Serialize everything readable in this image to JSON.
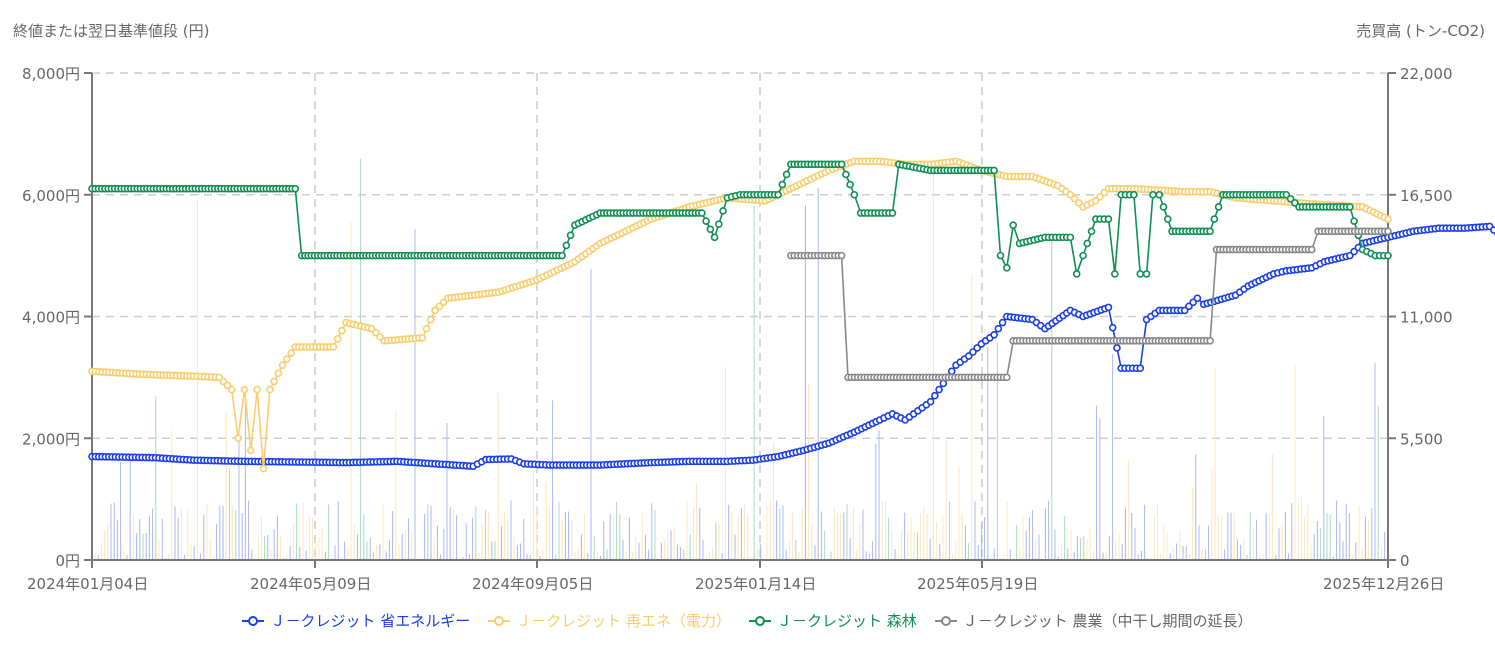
{
  "chart_data": {
    "type": "line",
    "title": "",
    "ylabel": "終値または翌日基準値段 (円)",
    "ylabel_right": "売買高 (トン-CO2)",
    "xlabel": "",
    "x_range": [
      "2024-01-04",
      "2025-12-26"
    ],
    "ylim": [
      0,
      8000
    ],
    "ylim_right": [
      0,
      22000
    ],
    "y_ticks": [
      "0円",
      "2,000円",
      "4,000円",
      "6,000円",
      "8,000円"
    ],
    "y_ticks_right": [
      "0",
      "5,500",
      "11,000",
      "16,500",
      "22,000"
    ],
    "x_ticks": [
      "2024年01月04日",
      "2024年05月09日",
      "2024年09月05日",
      "2025年01月14日",
      "2025年05月19日",
      "2025年12月26日"
    ],
    "grid": true,
    "legend_position": "bottom",
    "series": [
      {
        "name": "Ｊ－クレジット 省エネルギー",
        "color": "#1a3ee8",
        "points": [
          [
            0,
            1700
          ],
          [
            0.05,
            1680
          ],
          [
            0.08,
            1640
          ],
          [
            0.12,
            1620
          ],
          [
            0.16,
            1610
          ],
          [
            0.2,
            1600
          ],
          [
            0.24,
            1620
          ],
          [
            0.27,
            1580
          ],
          [
            0.3,
            1540
          ],
          [
            0.31,
            1650
          ],
          [
            0.33,
            1660
          ],
          [
            0.34,
            1580
          ],
          [
            0.36,
            1560
          ],
          [
            0.4,
            1560
          ],
          [
            0.44,
            1600
          ],
          [
            0.47,
            1620
          ],
          [
            0.5,
            1620
          ],
          [
            0.52,
            1640
          ],
          [
            0.54,
            1700
          ],
          [
            0.56,
            1800
          ],
          [
            0.58,
            1920
          ],
          [
            0.6,
            2100
          ],
          [
            0.62,
            2300
          ],
          [
            0.63,
            2400
          ],
          [
            0.64,
            2300
          ],
          [
            0.65,
            2450
          ],
          [
            0.66,
            2600
          ],
          [
            0.67,
            2900
          ],
          [
            0.68,
            3200
          ],
          [
            0.69,
            3350
          ],
          [
            0.7,
            3550
          ],
          [
            0.71,
            3700
          ],
          [
            0.72,
            4000
          ],
          [
            0.74,
            3950
          ],
          [
            0.75,
            3800
          ],
          [
            0.77,
            4100
          ],
          [
            0.78,
            4000
          ],
          [
            0.8,
            4150
          ],
          [
            0.81,
            3150
          ],
          [
            0.825,
            3150
          ],
          [
            0.83,
            3950
          ],
          [
            0.84,
            4100
          ],
          [
            0.86,
            4100
          ],
          [
            0.87,
            4300
          ],
          [
            0.875,
            4200
          ],
          [
            0.9,
            4350
          ],
          [
            0.91,
            4500
          ],
          [
            0.93,
            4700
          ],
          [
            0.94,
            4750
          ],
          [
            0.96,
            4800
          ],
          [
            0.97,
            4900
          ],
          [
            0.99,
            5000
          ],
          [
            1.0,
            5200
          ],
          [
            1.02,
            5300
          ],
          [
            1.04,
            5400
          ],
          [
            1.06,
            5450
          ],
          [
            1.08,
            5450
          ],
          [
            1.1,
            5480
          ],
          [
            1.11,
            5300
          ],
          [
            1.13,
            5350
          ],
          [
            1.14,
            5400
          ],
          [
            1.16,
            5350
          ],
          [
            1.17,
            5200
          ],
          [
            1.18,
            5100
          ],
          [
            1.19,
            5000
          ],
          [
            1.2,
            5200
          ],
          [
            1.22,
            5200
          ]
        ]
      },
      {
        "name": "Ｊ－クレジット 再エネ（電力）",
        "color": "#f9cd6e",
        "points": [
          [
            0,
            3100
          ],
          [
            0.04,
            3050
          ],
          [
            0.08,
            3020
          ],
          [
            0.1,
            3000
          ],
          [
            0.11,
            2800
          ],
          [
            0.115,
            2000
          ],
          [
            0.12,
            2800
          ],
          [
            0.125,
            1800
          ],
          [
            0.13,
            2800
          ],
          [
            0.135,
            1500
          ],
          [
            0.14,
            2800
          ],
          [
            0.15,
            3200
          ],
          [
            0.16,
            3500
          ],
          [
            0.19,
            3500
          ],
          [
            0.2,
            3900
          ],
          [
            0.22,
            3800
          ],
          [
            0.23,
            3600
          ],
          [
            0.26,
            3650
          ],
          [
            0.27,
            4100
          ],
          [
            0.28,
            4300
          ],
          [
            0.32,
            4400
          ],
          [
            0.35,
            4600
          ],
          [
            0.38,
            4900
          ],
          [
            0.4,
            5200
          ],
          [
            0.42,
            5400
          ],
          [
            0.44,
            5600
          ],
          [
            0.47,
            5800
          ],
          [
            0.5,
            5950
          ],
          [
            0.53,
            5900
          ],
          [
            0.56,
            6200
          ],
          [
            0.58,
            6400
          ],
          [
            0.6,
            6550
          ],
          [
            0.62,
            6550
          ],
          [
            0.64,
            6500
          ],
          [
            0.66,
            6500
          ],
          [
            0.68,
            6550
          ],
          [
            0.7,
            6400
          ],
          [
            0.72,
            6300
          ],
          [
            0.74,
            6300
          ],
          [
            0.76,
            6150
          ],
          [
            0.77,
            6000
          ],
          [
            0.78,
            5800
          ],
          [
            0.79,
            5900
          ],
          [
            0.8,
            6100
          ],
          [
            0.82,
            6100
          ],
          [
            0.86,
            6050
          ],
          [
            0.88,
            6050
          ],
          [
            0.9,
            5950
          ],
          [
            0.93,
            5900
          ],
          [
            0.96,
            5850
          ],
          [
            1.0,
            5800
          ],
          [
            1.02,
            5600
          ]
        ]
      },
      {
        "name": "Ｊ－クレジット 森林",
        "color": "#0f8f52",
        "points": [
          [
            0,
            6100
          ],
          [
            0.16,
            6100
          ],
          [
            0.165,
            5000
          ],
          [
            0.37,
            5000
          ],
          [
            0.38,
            5500
          ],
          [
            0.4,
            5700
          ],
          [
            0.48,
            5700
          ],
          [
            0.49,
            5300
          ],
          [
            0.5,
            5950
          ],
          [
            0.51,
            6000
          ],
          [
            0.54,
            6000
          ],
          [
            0.55,
            6500
          ],
          [
            0.59,
            6500
          ],
          [
            0.6,
            6000
          ],
          [
            0.605,
            5700
          ],
          [
            0.63,
            5700
          ],
          [
            0.635,
            6500
          ],
          [
            0.66,
            6400
          ],
          [
            0.71,
            6400
          ],
          [
            0.715,
            5000
          ],
          [
            0.72,
            4800
          ],
          [
            0.725,
            5500
          ],
          [
            0.73,
            5200
          ],
          [
            0.75,
            5300
          ],
          [
            0.77,
            5300
          ],
          [
            0.775,
            4700
          ],
          [
            0.78,
            5000
          ],
          [
            0.79,
            5600
          ],
          [
            0.8,
            5600
          ],
          [
            0.805,
            4700
          ],
          [
            0.81,
            6000
          ],
          [
            0.82,
            6000
          ],
          [
            0.825,
            4700
          ],
          [
            0.83,
            4700
          ],
          [
            0.835,
            6000
          ],
          [
            0.84,
            6000
          ],
          [
            0.85,
            5400
          ],
          [
            0.88,
            5400
          ],
          [
            0.89,
            6000
          ],
          [
            0.94,
            6000
          ],
          [
            0.95,
            5800
          ],
          [
            0.99,
            5800
          ],
          [
            1.0,
            5100
          ],
          [
            1.01,
            5000
          ],
          [
            1.02,
            5000
          ]
        ]
      },
      {
        "name": "Ｊ－クレジット 農業（中干し期間の延長）",
        "color": "#888888",
        "points": [
          [
            0.55,
            5000
          ],
          [
            0.59,
            5000
          ],
          [
            0.595,
            3000
          ],
          [
            0.72,
            3000
          ],
          [
            0.725,
            3600
          ],
          [
            0.88,
            3600
          ],
          [
            0.885,
            5100
          ],
          [
            0.96,
            5100
          ],
          [
            0.965,
            5400
          ],
          [
            1.02,
            5400
          ]
        ]
      }
    ]
  },
  "legend": [
    {
      "label": "Ｊ－クレジット 省エネルギー",
      "color": "#1a3ee8"
    },
    {
      "label": "Ｊ－クレジット 再エネ（電力）",
      "color": "#f9cd6e"
    },
    {
      "label": "Ｊ－クレジット 森林",
      "color": "#0f8f52"
    },
    {
      "label": "Ｊ－クレジット 農業（中干し期間の延長）",
      "color": "#888888"
    }
  ]
}
